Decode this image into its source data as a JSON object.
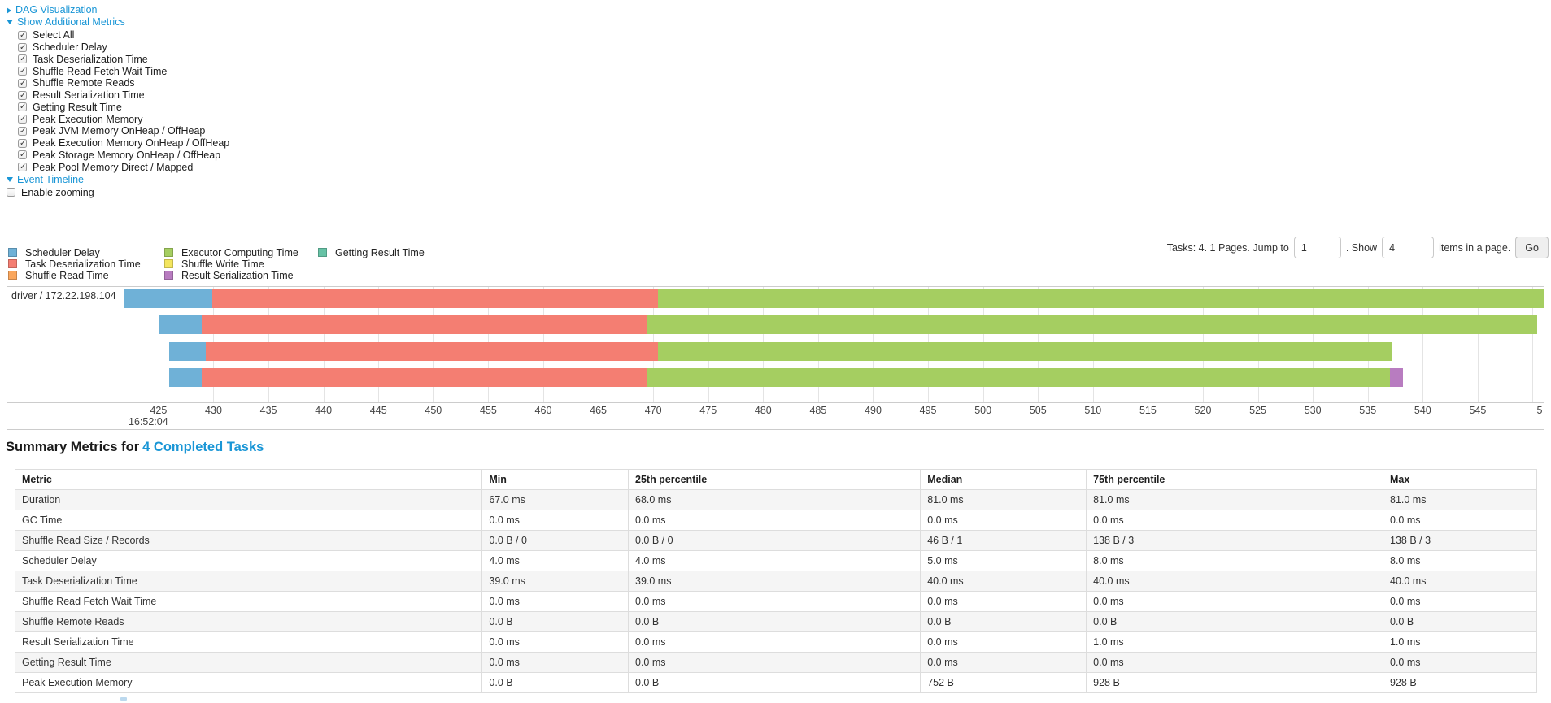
{
  "colors": {
    "link": "#1a96d6",
    "scheduler_delay": "#6FB1D7",
    "task_deserialization": "#F47E72",
    "shuffle_read": "#FAA65C",
    "executor_computing": "#A5CE61",
    "shuffle_write": "#F3E55E",
    "getting_result": "#66C2A5",
    "result_serialization": "#B87CC0"
  },
  "sections": {
    "dag": "DAG Visualization",
    "additional_metrics": "Show Additional Metrics",
    "event_timeline": "Event Timeline"
  },
  "metric_checkboxes": [
    {
      "label": "Select All",
      "checked": true
    },
    {
      "label": "Scheduler Delay",
      "checked": true
    },
    {
      "label": "Task Deserialization Time",
      "checked": true
    },
    {
      "label": "Shuffle Read Fetch Wait Time",
      "checked": true
    },
    {
      "label": "Shuffle Remote Reads",
      "checked": true
    },
    {
      "label": "Result Serialization Time",
      "checked": true
    },
    {
      "label": "Getting Result Time",
      "checked": true
    },
    {
      "label": "Peak Execution Memory",
      "checked": true
    },
    {
      "label": "Peak JVM Memory OnHeap / OffHeap",
      "checked": true
    },
    {
      "label": "Peak Execution Memory OnHeap / OffHeap",
      "checked": true
    },
    {
      "label": "Peak Storage Memory OnHeap / OffHeap",
      "checked": true
    },
    {
      "label": "Peak Pool Memory Direct / Mapped",
      "checked": true
    }
  ],
  "enable_zooming": {
    "label": "Enable zooming",
    "checked": false
  },
  "pagination": {
    "prefix": "Tasks: 4. 1 Pages. Jump to",
    "jump_value": "1",
    "mid": ". Show",
    "show_value": "4",
    "suffix": "items in a page.",
    "go": "Go"
  },
  "legend": [
    {
      "label": "Scheduler Delay",
      "color": "scheduler_delay",
      "col": 1,
      "row": 1
    },
    {
      "label": "Task Deserialization Time",
      "color": "task_deserialization",
      "col": 1,
      "row": 2
    },
    {
      "label": "Shuffle Read Time",
      "color": "shuffle_read",
      "col": 1,
      "row": 3
    },
    {
      "label": "Executor Computing Time",
      "color": "executor_computing",
      "col": 2,
      "row": 1
    },
    {
      "label": "Shuffle Write Time",
      "color": "shuffle_write",
      "col": 2,
      "row": 2
    },
    {
      "label": "Result Serialization Time",
      "color": "result_serialization",
      "col": 2,
      "row": 3
    },
    {
      "label": "Getting Result Time",
      "color": "getting_result",
      "col": 3,
      "row": 1
    }
  ],
  "chart_data": {
    "type": "bar",
    "title": "Event Timeline",
    "row_label": "driver / 172.22.198.104",
    "x_axis": {
      "min": 421.9,
      "max": 551.0,
      "tick_start": 425,
      "tick_step": 5,
      "tick_count": 25,
      "partial_last_label": "5",
      "time_label": "16:52:04",
      "units": "ms within 16:52:04"
    },
    "tasks": [
      {
        "start": 421.9,
        "segments": [
          {
            "metric": "scheduler_delay",
            "end": 429.9
          },
          {
            "metric": "task_deserialization",
            "end": 470.4
          },
          {
            "metric": "executor_computing",
            "end": 551.0
          }
        ]
      },
      {
        "start": 425.0,
        "segments": [
          {
            "metric": "scheduler_delay",
            "end": 428.9
          },
          {
            "metric": "task_deserialization",
            "end": 469.5
          },
          {
            "metric": "executor_computing",
            "end": 550.4
          }
        ]
      },
      {
        "start": 426.0,
        "segments": [
          {
            "metric": "scheduler_delay",
            "end": 429.3
          },
          {
            "metric": "task_deserialization",
            "end": 470.4
          },
          {
            "metric": "executor_computing",
            "end": 537.2
          }
        ]
      },
      {
        "start": 426.0,
        "segments": [
          {
            "metric": "scheduler_delay",
            "end": 428.9
          },
          {
            "metric": "task_deserialization",
            "end": 469.5
          },
          {
            "metric": "executor_computing",
            "end": 537.0
          },
          {
            "metric": "result_serialization",
            "end": 538.2
          }
        ]
      }
    ]
  },
  "summary": {
    "title_prefix": "Summary Metrics for",
    "title_link": "4 Completed Tasks",
    "columns": [
      "Metric",
      "Min",
      "25th percentile",
      "Median",
      "75th percentile",
      "Max"
    ],
    "rows": [
      {
        "metric": "Duration",
        "values": [
          "67.0 ms",
          "68.0 ms",
          "81.0 ms",
          "81.0 ms",
          "81.0 ms"
        ]
      },
      {
        "metric": "GC Time",
        "values": [
          "0.0 ms",
          "0.0 ms",
          "0.0 ms",
          "0.0 ms",
          "0.0 ms"
        ]
      },
      {
        "metric": "Shuffle Read Size / Records",
        "values": [
          "0.0 B / 0",
          "0.0 B / 0",
          "46 B / 1",
          "138 B / 3",
          "138 B / 3"
        ]
      },
      {
        "metric": "Scheduler Delay",
        "values": [
          "4.0 ms",
          "4.0 ms",
          "5.0 ms",
          "8.0 ms",
          "8.0 ms"
        ]
      },
      {
        "metric": "Task Deserialization Time",
        "values": [
          "39.0 ms",
          "39.0 ms",
          "40.0 ms",
          "40.0 ms",
          "40.0 ms"
        ]
      },
      {
        "metric": "Shuffle Read Fetch Wait Time",
        "values": [
          "0.0 ms",
          "0.0 ms",
          "0.0 ms",
          "0.0 ms",
          "0.0 ms"
        ]
      },
      {
        "metric": "Shuffle Remote Reads",
        "values": [
          "0.0 B",
          "0.0 B",
          "0.0 B",
          "0.0 B",
          "0.0 B"
        ]
      },
      {
        "metric": "Result Serialization Time",
        "values": [
          "0.0 ms",
          "0.0 ms",
          "0.0 ms",
          "1.0 ms",
          "1.0 ms"
        ]
      },
      {
        "metric": "Getting Result Time",
        "values": [
          "0.0 ms",
          "0.0 ms",
          "0.0 ms",
          "0.0 ms",
          "0.0 ms"
        ]
      },
      {
        "metric": "Peak Execution Memory",
        "values": [
          "0.0 B",
          "0.0 B",
          "752 B",
          "928 B",
          "928 B"
        ]
      }
    ]
  }
}
